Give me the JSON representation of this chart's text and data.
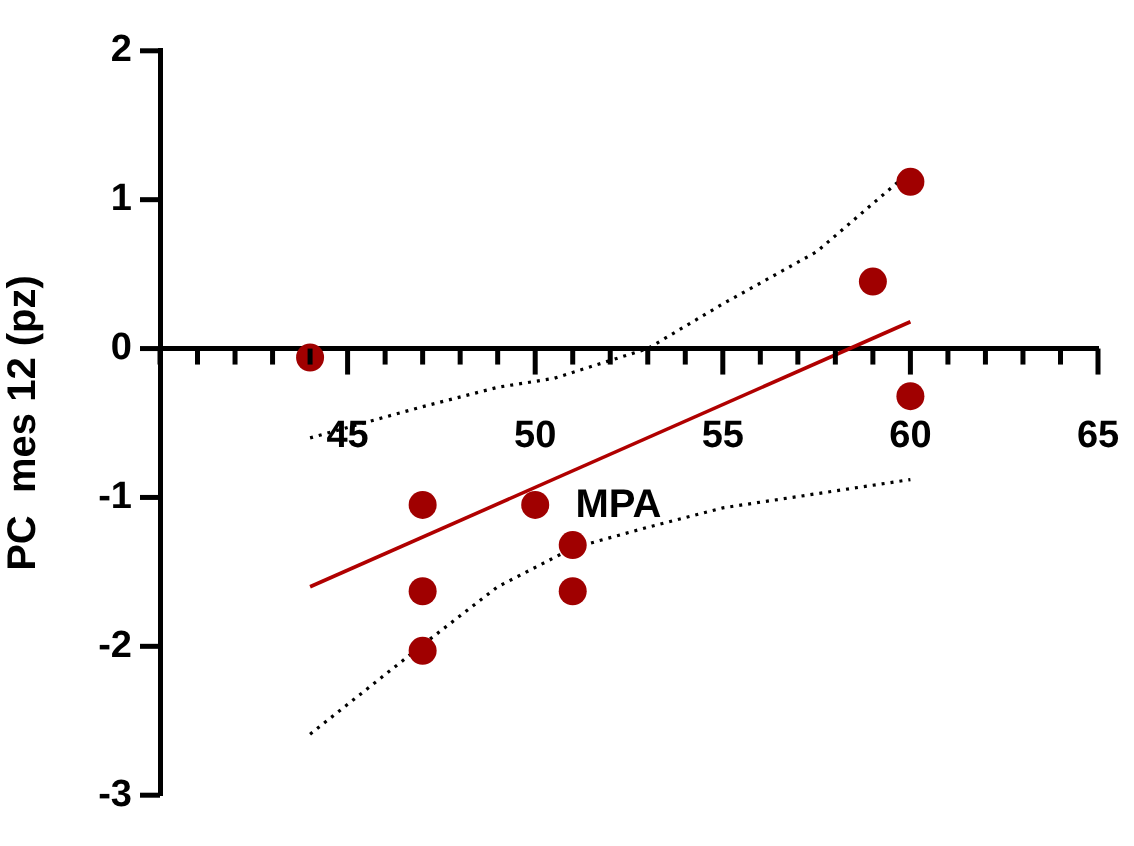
{
  "chart_data": {
    "type": "scatter",
    "ylabel": "PC  mes 12 (pz)",
    "xlim": [
      40,
      65
    ],
    "xticks": [
      {
        "value": 40,
        "label": null
      },
      {
        "value": 41,
        "label": null
      },
      {
        "value": 42,
        "label": null
      },
      {
        "value": 43,
        "label": null
      },
      {
        "value": 44,
        "label": null
      },
      45,
      {
        "value": 46,
        "label": null
      },
      {
        "value": 47,
        "label": null
      },
      {
        "value": 48,
        "label": null
      },
      {
        "value": 49,
        "label": null
      },
      50,
      {
        "value": 51,
        "label": null
      },
      {
        "value": 52,
        "label": null
      },
      {
        "value": 53,
        "label": null
      },
      {
        "value": 54,
        "label": null
      },
      55,
      {
        "value": 56,
        "label": null
      },
      {
        "value": 57,
        "label": null
      },
      {
        "value": 58,
        "label": null
      },
      {
        "value": 59,
        "label": null
      },
      60,
      {
        "value": 61,
        "label": null
      },
      {
        "value": 62,
        "label": null
      },
      {
        "value": 63,
        "label": null
      },
      {
        "value": 64,
        "label": null
      },
      65
    ],
    "ylim": [
      -3,
      2
    ],
    "yticks": [
      -3,
      -2,
      -1,
      0,
      1,
      2
    ],
    "grid": false,
    "legend": false,
    "marker": "circle",
    "series": [
      {
        "color": "#a00000",
        "x": [
          44,
          47,
          47,
          47,
          50,
          51,
          51,
          59,
          60,
          60
        ],
        "values": [
          -0.06,
          -1.05,
          -1.63,
          -2.03,
          -1.05,
          -1.32,
          -1.63,
          0.45,
          1.12,
          -0.32
        ]
      },
      {
        "type": "line",
        "color": "#b00000",
        "marker": "none",
        "line_style": "solid",
        "x": [
          44,
          60
        ],
        "values": [
          -1.6,
          0.18
        ]
      },
      {
        "type": "line",
        "color": "#000000",
        "marker": "none",
        "line_style": "dotted",
        "x": [
          44,
          47,
          49,
          50.5,
          52,
          53,
          55,
          57.5,
          60
        ],
        "values": [
          -0.6,
          -0.39,
          -0.26,
          -0.2,
          -0.08,
          0,
          0.3,
          0.65,
          1.19
        ]
      },
      {
        "type": "line",
        "color": "#000000",
        "marker": "none",
        "line_style": "dotted",
        "x": [
          44,
          47,
          49,
          51,
          53,
          55,
          60
        ],
        "values": [
          -2.59,
          -1.99,
          -1.6,
          -1.34,
          -1.2,
          -1.07,
          -0.88
        ]
      }
    ],
    "annotations": [
      "MPA"
    ]
  }
}
